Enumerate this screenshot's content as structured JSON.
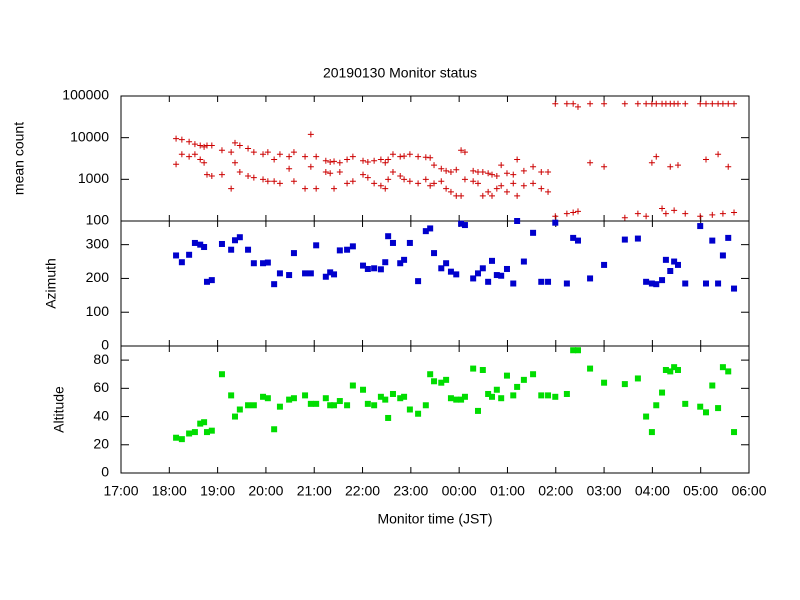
{
  "chart_data": [
    {
      "type": "scatter",
      "title": "20190130 Monitor status",
      "ylabel": "mean count",
      "yscale": "log",
      "ylim": [
        100,
        100000
      ],
      "yticks": [
        100,
        1000,
        10000,
        100000
      ],
      "series": [
        {
          "color": "#cc0000",
          "marker": "plus",
          "x": [
            18.14,
            18.26,
            18.41,
            18.53,
            18.64,
            18.72,
            18.78,
            18.88,
            19.09,
            19.28,
            19.36,
            19.46,
            19.63,
            19.75,
            19.94,
            20.04,
            20.17,
            20.29,
            20.48,
            20.58,
            20.81,
            20.93,
            21.04,
            21.24,
            21.33,
            21.41,
            21.53,
            21.68,
            21.8,
            22.01,
            22.11,
            22.24,
            22.38,
            22.47,
            22.53,
            22.63,
            22.78,
            22.86,
            22.98,
            23.15,
            23.31,
            23.4,
            23.48,
            23.63,
            23.73,
            23.83,
            23.94,
            24.04,
            24.12,
            24.29,
            24.39,
            24.49,
            24.6,
            24.68,
            24.78,
            24.87,
            24.99,
            25.12,
            25.2,
            25.34,
            25.53,
            25.7,
            25.84,
            25.99,
            26.23,
            26.36,
            26.46,
            26.71,
            27.0,
            27.43,
            27.7,
            27.87,
            27.99,
            28.08,
            28.2,
            28.28,
            28.37,
            28.45,
            28.53,
            28.68,
            28.99,
            29.11,
            29.24,
            29.36,
            29.46,
            29.57,
            29.69,
            18.14,
            18.26,
            18.41,
            18.53,
            18.64,
            18.72,
            18.78,
            18.88,
            19.09,
            19.28,
            19.36,
            19.46,
            19.63,
            19.75,
            19.94,
            20.04,
            20.17,
            20.29,
            20.48,
            20.58,
            20.81,
            20.93,
            21.04,
            21.24,
            21.33,
            21.41,
            21.53,
            21.68,
            21.8,
            22.01,
            22.11,
            22.24,
            22.38,
            22.47,
            22.53,
            22.63,
            22.78,
            22.86,
            22.98,
            23.15,
            23.31,
            23.4,
            23.48,
            23.63,
            23.73,
            23.83,
            23.94,
            24.04,
            24.12,
            24.29,
            24.39,
            24.49,
            24.6,
            24.68,
            24.78,
            24.87,
            24.99,
            25.12,
            25.2,
            25.34,
            25.53,
            25.7,
            25.84,
            25.99,
            26.23,
            26.36,
            26.46,
            26.71,
            27.0,
            27.43,
            27.7,
            27.87,
            27.99,
            28.08,
            28.2,
            28.28,
            28.37,
            28.45,
            28.53,
            28.68,
            28.99,
            29.11,
            29.24,
            29.36,
            29.46,
            29.57,
            29.69
          ],
          "values": [
            9500,
            9000,
            8000,
            7000,
            6500,
            6000,
            6500,
            6500,
            5000,
            4500,
            7500,
            6500,
            5500,
            4500,
            4000,
            4500,
            3000,
            4000,
            3500,
            4500,
            3500,
            12000,
            3500,
            2800,
            2600,
            2700,
            2500,
            3000,
            3500,
            2800,
            2600,
            2800,
            3000,
            2500,
            3000,
            4000,
            3500,
            3600,
            4000,
            3500,
            3400,
            3300,
            2200,
            1800,
            1600,
            1500,
            1700,
            5000,
            4500,
            1600,
            1500,
            1500,
            1400,
            1300,
            1200,
            2200,
            1400,
            1300,
            3000,
            1600,
            2000,
            1500,
            1500,
            65000,
            65000,
            65000,
            55000,
            65000,
            65000,
            65000,
            65000,
            65000,
            65000,
            65000,
            65000,
            65000,
            65000,
            65000,
            65000,
            65000,
            65000,
            65000,
            65000,
            65000,
            65000,
            65000,
            65000,
            2300,
            4000,
            3500,
            4000,
            3000,
            2500,
            1300,
            1200,
            1300,
            600,
            2500,
            1500,
            1200,
            1100,
            1000,
            900,
            900,
            800,
            1800,
            900,
            600,
            2000,
            600,
            1500,
            1400,
            600,
            1500,
            800,
            900,
            1300,
            1100,
            800,
            700,
            600,
            1000,
            1500,
            1200,
            1000,
            900,
            800,
            1000,
            700,
            800,
            900,
            600,
            500,
            400,
            400,
            1000,
            900,
            800,
            400,
            500,
            400,
            600,
            700,
            500,
            800,
            400,
            700,
            800,
            600,
            500,
            130,
            150,
            160,
            170,
            2500,
            2000,
            120,
            150,
            130,
            2500,
            3500,
            200,
            150,
            2000,
            180,
            2200,
            150,
            130,
            3000,
            140,
            4000,
            150,
            2000,
            160
          ]
        }
      ]
    },
    {
      "type": "scatter",
      "ylabel": "Azimuth",
      "ylim": [
        0,
        370
      ],
      "yticks": [
        0,
        100,
        200,
        300
      ],
      "series": [
        {
          "color": "#0000cc",
          "marker": "square",
          "x": [
            18.14,
            18.26,
            18.41,
            18.53,
            18.64,
            18.72,
            18.78,
            18.88,
            19.09,
            19.28,
            19.36,
            19.46,
            19.63,
            19.75,
            19.94,
            20.04,
            20.17,
            20.29,
            20.48,
            20.58,
            20.81,
            20.93,
            21.04,
            21.24,
            21.33,
            21.41,
            21.53,
            21.68,
            21.8,
            22.01,
            22.11,
            22.24,
            22.38,
            22.47,
            22.53,
            22.63,
            22.78,
            22.86,
            22.98,
            23.15,
            23.31,
            23.4,
            23.48,
            23.63,
            23.73,
            23.83,
            23.94,
            24.04,
            24.12,
            24.29,
            24.39,
            24.49,
            24.6,
            24.68,
            24.78,
            24.87,
            24.99,
            25.12,
            25.2,
            25.34,
            25.53,
            25.7,
            25.84,
            25.99,
            26.23,
            26.36,
            26.46,
            26.71,
            27.0,
            27.43,
            27.7,
            27.87,
            27.99,
            28.08,
            28.2,
            28.28,
            28.37,
            28.45,
            28.53,
            28.68,
            28.99,
            29.11,
            29.24,
            29.36,
            29.46,
            29.57,
            29.69
          ],
          "values": [
            268,
            248,
            270,
            305,
            300,
            293,
            190,
            195,
            302,
            285,
            313,
            322,
            285,
            245,
            245,
            247,
            183,
            215,
            210,
            275,
            215,
            215,
            298,
            205,
            218,
            212,
            283,
            285,
            295,
            238,
            228,
            230,
            227,
            248,
            325,
            305,
            245,
            255,
            305,
            192,
            340,
            348,
            275,
            230,
            245,
            220,
            212,
            362,
            358,
            200,
            215,
            230,
            190,
            252,
            210,
            208,
            228,
            185,
            370,
            250,
            335,
            190,
            190,
            365,
            185,
            320,
            312,
            200,
            240,
            315,
            318,
            190,
            185,
            183,
            195,
            255,
            222,
            250,
            240,
            185,
            355,
            185,
            312,
            185,
            268,
            320,
            170
          ]
        }
      ]
    },
    {
      "type": "scatter",
      "ylabel": "Altitude",
      "xlabel": "Monitor time (JST)",
      "ylim": [
        0,
        90
      ],
      "yticks": [
        0,
        20,
        40,
        60,
        80
      ],
      "xlim": [
        17,
        30
      ],
      "xticks": [
        {
          "value": 17,
          "label": "17:00"
        },
        {
          "value": 18,
          "label": "18:00"
        },
        {
          "value": 19,
          "label": "19:00"
        },
        {
          "value": 20,
          "label": "20:00"
        },
        {
          "value": 21,
          "label": "21:00"
        },
        {
          "value": 22,
          "label": "22:00"
        },
        {
          "value": 23,
          "label": "23:00"
        },
        {
          "value": 24,
          "label": "00:00"
        },
        {
          "value": 25,
          "label": "01:00"
        },
        {
          "value": 26,
          "label": "02:00"
        },
        {
          "value": 27,
          "label": "03:00"
        },
        {
          "value": 28,
          "label": "04:00"
        },
        {
          "value": 29,
          "label": "05:00"
        },
        {
          "value": 30,
          "label": "06:00"
        }
      ],
      "series": [
        {
          "color": "#00dd00",
          "marker": "square",
          "x": [
            18.14,
            18.26,
            18.41,
            18.53,
            18.64,
            18.72,
            18.78,
            18.88,
            19.09,
            19.28,
            19.36,
            19.46,
            19.63,
            19.75,
            19.94,
            20.04,
            20.17,
            20.29,
            20.48,
            20.58,
            20.81,
            20.93,
            21.04,
            21.24,
            21.33,
            21.41,
            21.53,
            21.68,
            21.8,
            22.01,
            22.11,
            22.24,
            22.38,
            22.47,
            22.53,
            22.63,
            22.78,
            22.86,
            22.98,
            23.15,
            23.31,
            23.4,
            23.48,
            23.63,
            23.73,
            23.83,
            23.94,
            24.04,
            24.12,
            24.29,
            24.39,
            24.49,
            24.6,
            24.68,
            24.78,
            24.87,
            24.99,
            25.12,
            25.2,
            25.34,
            25.53,
            25.7,
            25.84,
            25.99,
            26.23,
            26.36,
            26.46,
            26.71,
            27.0,
            27.43,
            27.7,
            27.87,
            27.99,
            28.08,
            28.2,
            28.28,
            28.37,
            28.45,
            28.53,
            28.68,
            28.99,
            29.11,
            29.24,
            29.36,
            29.46,
            29.57,
            29.69
          ],
          "values": [
            25,
            24,
            28,
            29,
            35,
            36,
            29,
            30,
            70,
            55,
            40,
            45,
            48,
            48,
            54,
            53,
            31,
            47,
            52,
            53,
            55,
            49,
            49,
            53,
            48,
            48,
            51,
            48,
            62,
            59,
            49,
            48,
            54,
            52,
            39,
            56,
            53,
            54,
            45,
            42,
            48,
            70,
            65,
            64,
            66,
            53,
            52,
            52,
            54,
            74,
            44,
            73,
            56,
            54,
            59,
            53,
            69,
            55,
            61,
            66,
            70,
            55,
            55,
            54,
            56,
            87,
            87,
            74,
            64,
            63,
            67,
            40,
            29,
            48,
            57,
            73,
            72,
            75,
            73,
            49,
            47,
            43,
            62,
            46,
            75,
            72,
            29
          ]
        }
      ]
    }
  ]
}
